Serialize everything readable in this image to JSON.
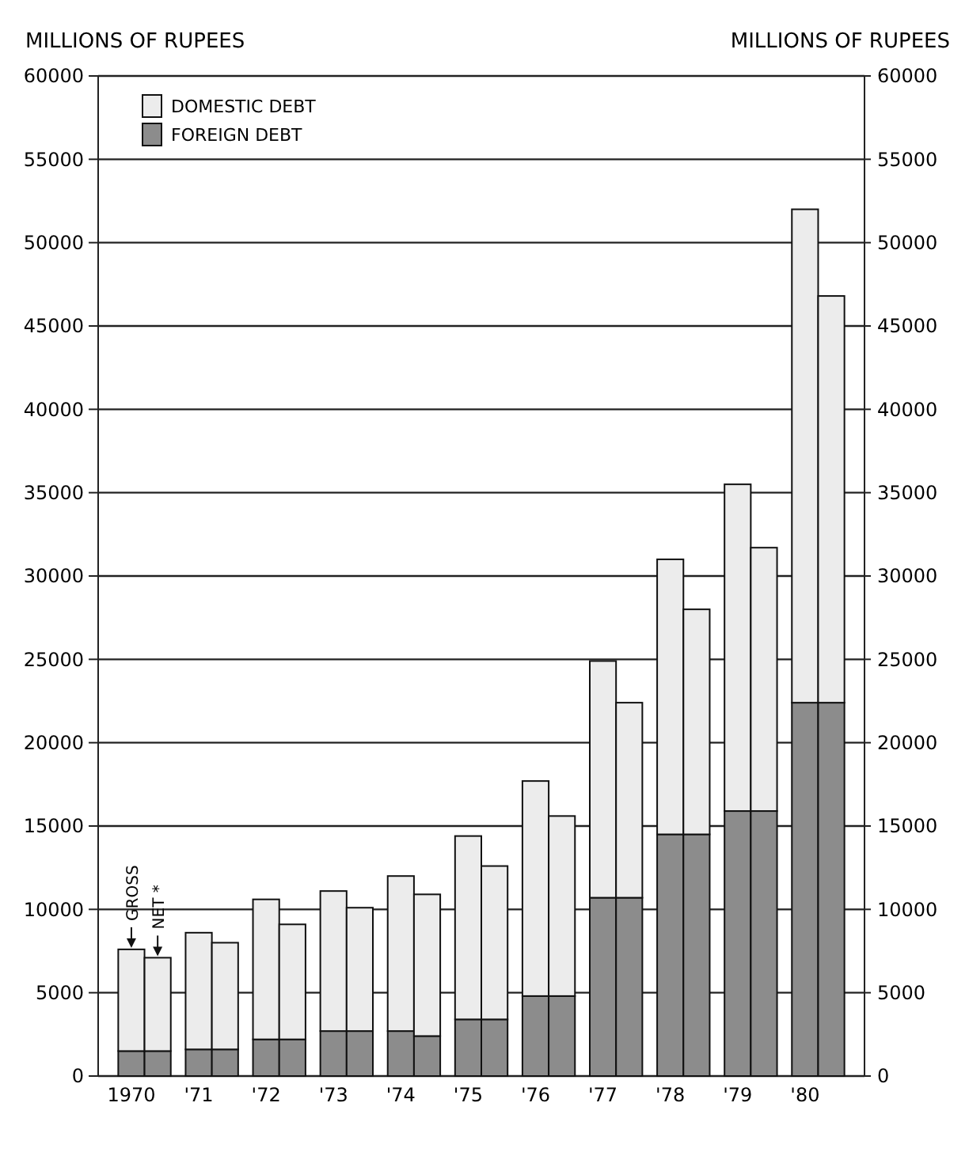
{
  "chart_data": {
    "type": "bar",
    "stacked": true,
    "ylabel": "MILLIONS OF RUPEES",
    "y2label": "MILLIONS OF RUPEES",
    "categories": [
      "1970",
      null,
      "'71",
      null,
      "'72",
      null,
      "'73",
      null,
      "'74",
      null,
      "'75",
      null,
      "'76",
      null,
      "'77",
      null,
      "'78",
      null,
      "'79",
      null,
      "'80",
      null
    ],
    "series": [
      {
        "name": "FOREIGN DEBT",
        "color": "#8c8c8c",
        "values": [
          1500,
          1500,
          1600,
          1600,
          2200,
          2200,
          2700,
          2700,
          2700,
          2400,
          3400,
          3400,
          4800,
          4800,
          10700,
          10700,
          14500,
          14500,
          15900,
          15900,
          22400,
          22400
        ]
      },
      {
        "name": "DOMESTIC DEBT",
        "color": "#ececec",
        "values": [
          6100,
          5600,
          7000,
          6400,
          8400,
          6900,
          8400,
          7400,
          9300,
          8500,
          11000,
          9200,
          12900,
          10800,
          14200,
          11700,
          16500,
          13500,
          19600,
          15800,
          29600,
          24400
        ]
      }
    ],
    "ylim": [
      0,
      60000
    ],
    "yticks": [
      0,
      5000,
      10000,
      15000,
      20000,
      25000,
      30000,
      35000,
      40000,
      45000,
      50000,
      55000,
      60000
    ],
    "y2lim": [
      0,
      60000
    ],
    "y2ticks": [
      0,
      5000,
      10000,
      15000,
      20000,
      25000,
      30000,
      35000,
      40000,
      45000,
      50000,
      55000,
      60000
    ],
    "grid": "y",
    "legend": "top left",
    "annotations": [
      "GROSS",
      "NET *"
    ]
  }
}
